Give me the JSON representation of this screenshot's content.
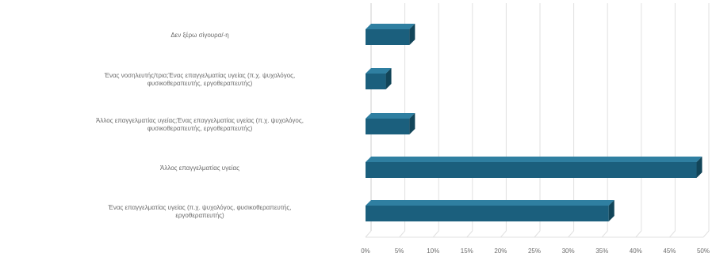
{
  "chart_data": {
    "type": "bar",
    "orientation": "horizontal",
    "style": "3d",
    "categories": [
      "Δεν ξέρω σίγουρα/-η",
      "Ένας νοσηλευτής/τρια;Ένας επαγγελματίας υγείας (π.χ. ψυχολόγος, φυσικοθεραπευτής, εργοθεραπευτής)",
      "Άλλος επαγγελματίας υγείας;Ένας επαγγελματίας υγείας (π.χ. ψυχολόγος, φυσικοθεραπευτής, εργοθεραπευτής)",
      "Άλλος επαγγελματίας υγείας",
      "Ένας επαγγελματίας υγείας (π.χ. ψυχολόγος, φυσικοθεραπευτής, εργοθεραπευτής)"
    ],
    "values": [
      6.5,
      3,
      6.5,
      49,
      36
    ],
    "xlim": [
      0,
      50
    ],
    "x_ticks": [
      "0%",
      "5%",
      "10%",
      "15%",
      "20%",
      "25%",
      "30%",
      "35%",
      "40%",
      "45%",
      "50%"
    ],
    "x_tick_values": [
      0,
      5,
      10,
      15,
      20,
      25,
      30,
      35,
      40,
      45,
      50
    ],
    "grid": true,
    "colors": {
      "bar_front": "#1b5f7d",
      "bar_top": "#2f7fa1",
      "bar_side": "#124559",
      "grid": "#e0e0e0",
      "text": "#6a6a6a"
    }
  }
}
